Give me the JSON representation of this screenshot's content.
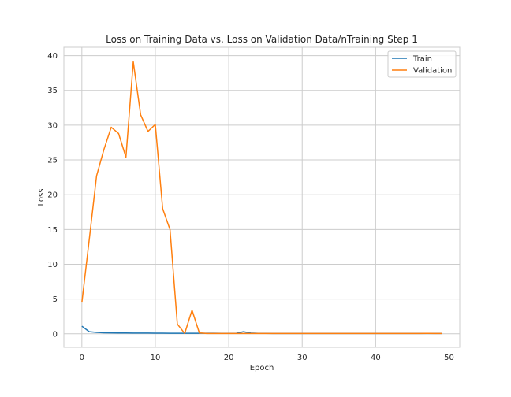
{
  "chart_data": {
    "type": "line",
    "title": "Loss on Training Data vs. Loss on Validation Data/nTraining Step 1",
    "xlabel": "Epoch",
    "ylabel": "Loss",
    "xlim": [
      -2.45,
      51.45
    ],
    "ylim": [
      -1.95,
      41.2
    ],
    "xticks": [
      0,
      10,
      20,
      30,
      40,
      50
    ],
    "yticks": [
      0,
      5,
      10,
      15,
      20,
      25,
      30,
      35,
      40
    ],
    "grid": true,
    "legend_position": "top-right",
    "x": [
      0,
      1,
      2,
      3,
      4,
      5,
      6,
      7,
      8,
      9,
      10,
      11,
      12,
      13,
      14,
      15,
      16,
      17,
      18,
      19,
      20,
      21,
      22,
      23,
      24,
      25,
      26,
      27,
      28,
      29,
      30,
      31,
      32,
      33,
      34,
      35,
      36,
      37,
      38,
      39,
      40,
      41,
      42,
      43,
      44,
      45,
      46,
      47,
      48,
      49
    ],
    "series": [
      {
        "name": "Train",
        "color": "#1f77b4",
        "values": [
          1.1,
          0.3,
          0.2,
          0.15,
          0.13,
          0.12,
          0.11,
          0.1,
          0.1,
          0.1,
          0.09,
          0.09,
          0.08,
          0.08,
          0.08,
          0.07,
          0.07,
          0.07,
          0.07,
          0.06,
          0.06,
          0.06,
          0.3,
          0.1,
          0.06,
          0.06,
          0.05,
          0.05,
          0.05,
          0.05,
          0.05,
          0.05,
          0.05,
          0.05,
          0.04,
          0.04,
          0.04,
          0.04,
          0.04,
          0.04,
          0.04,
          0.04,
          0.04,
          0.04,
          0.04,
          0.04,
          0.04,
          0.04,
          0.04,
          0.04
        ]
      },
      {
        "name": "Validation",
        "color": "#ff7f0e",
        "values": [
          4.5,
          13.5,
          22.7,
          26.5,
          29.7,
          28.8,
          25.4,
          39.1,
          31.5,
          29.1,
          30.1,
          18.0,
          15.0,
          1.4,
          0.05,
          3.4,
          0.12,
          0.05,
          0.05,
          0.05,
          0.04,
          0.04,
          0.04,
          0.04,
          0.04,
          0.04,
          0.05,
          0.04,
          0.04,
          0.04,
          0.05,
          0.05,
          0.04,
          0.04,
          0.04,
          0.04,
          0.05,
          0.04,
          0.05,
          0.05,
          0.04,
          0.04,
          0.04,
          0.04,
          0.04,
          0.04,
          0.05,
          0.06,
          0.05,
          0.04
        ]
      }
    ]
  }
}
